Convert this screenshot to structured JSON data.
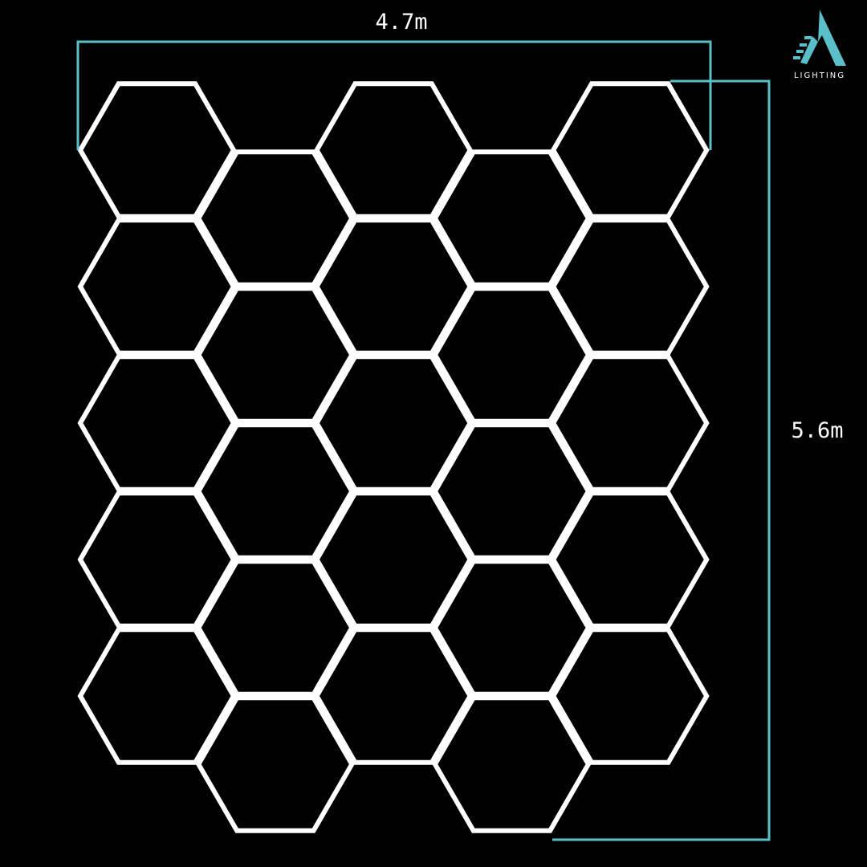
{
  "dimensions": {
    "width_label": "4.7m",
    "height_label": "5.6m"
  },
  "grid": {
    "columns": 5,
    "hexes_per_column": [
      5,
      5,
      5,
      5,
      5
    ],
    "offset_columns": [
      1,
      3
    ]
  },
  "logo": {
    "text": "LIGHTING"
  },
  "colors": {
    "background": "#000000",
    "hexagon": "#ffffff",
    "dimension_line": "#5bbfc9",
    "logo": "#5bbfc9"
  }
}
